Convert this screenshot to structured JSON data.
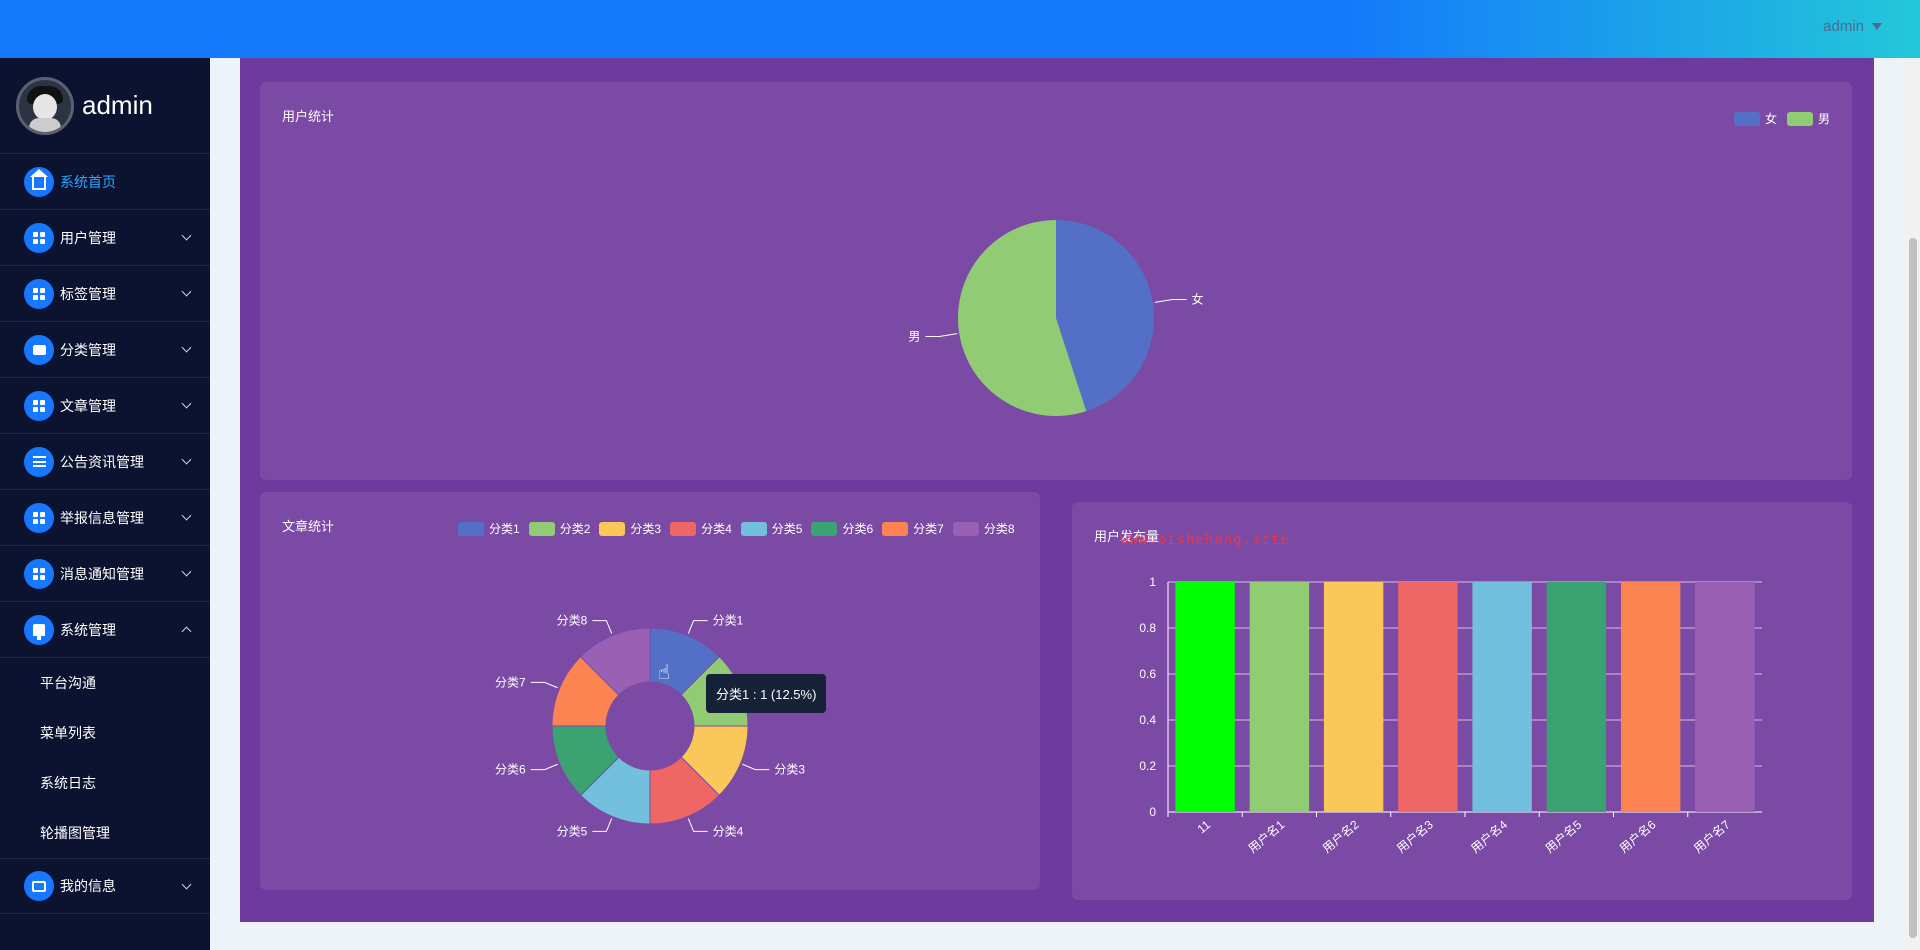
{
  "topbar": {
    "user": "admin"
  },
  "sidebar": {
    "profile_name": "admin",
    "items": [
      {
        "label": "系统首页",
        "icon": "home-icon",
        "active": true
      },
      {
        "label": "用户管理",
        "icon": "grid-icon"
      },
      {
        "label": "标签管理",
        "icon": "grid-icon"
      },
      {
        "label": "分类管理",
        "icon": "chat-icon"
      },
      {
        "label": "文章管理",
        "icon": "grid-icon"
      },
      {
        "label": "公告资讯管理",
        "icon": "list-icon"
      },
      {
        "label": "举报信息管理",
        "icon": "grid-icon"
      },
      {
        "label": "消息通知管理",
        "icon": "grid-icon"
      },
      {
        "label": "系统管理",
        "icon": "pin-icon",
        "expanded": true
      }
    ],
    "sub_items": [
      "平台沟通",
      "菜单列表",
      "系统日志",
      "轮播图管理"
    ],
    "last_item": {
      "label": "我的信息",
      "icon": "card-icon"
    }
  },
  "watermark": "www.bishehang.site",
  "panels": {
    "user_stats": {
      "title": "用户统计"
    },
    "article_stats": {
      "title": "文章统计"
    },
    "user_posts": {
      "title": "用户发布量"
    }
  },
  "tooltip": "分类1 : 1 (12.5%)",
  "chart_data": [
    {
      "type": "pie",
      "title": "用户统计",
      "legend_placement": "top-right",
      "series": [
        {
          "name": "女",
          "value": 45,
          "color": "#5470c6"
        },
        {
          "name": "男",
          "value": 55,
          "color": "#91cc75"
        }
      ]
    },
    {
      "type": "pie",
      "subtype": "donut",
      "title": "文章统计",
      "legend_placement": "top",
      "series": [
        {
          "name": "分类1",
          "value": 1,
          "color": "#5470c6"
        },
        {
          "name": "分类2",
          "value": 1,
          "color": "#91cc75"
        },
        {
          "name": "分类3",
          "value": 1,
          "color": "#fac858"
        },
        {
          "name": "分类4",
          "value": 1,
          "color": "#ee6666"
        },
        {
          "name": "分类5",
          "value": 1,
          "color": "#73c0de"
        },
        {
          "name": "分类6",
          "value": 1,
          "color": "#3ba272"
        },
        {
          "name": "分类7",
          "value": 1,
          "color": "#fc8452"
        },
        {
          "name": "分类8",
          "value": 1,
          "color": "#9a60b4"
        }
      ]
    },
    {
      "type": "bar",
      "title": "用户发布量",
      "categories": [
        "11",
        "用户名1",
        "用户名2",
        "用户名3",
        "用户名4",
        "用户名5",
        "用户名6",
        "用户名7"
      ],
      "values": [
        1,
        1,
        1,
        1,
        1,
        1,
        1,
        1
      ],
      "colors": [
        "#00ff00",
        "#91cc75",
        "#fac858",
        "#ee6666",
        "#73c0de",
        "#3ba272",
        "#fc8452",
        "#9a60b4"
      ],
      "ylim": [
        0,
        1
      ],
      "yticks": [
        "0",
        "0.2",
        "0.4",
        "0.6",
        "0.8",
        "1"
      ],
      "grid": true
    }
  ]
}
